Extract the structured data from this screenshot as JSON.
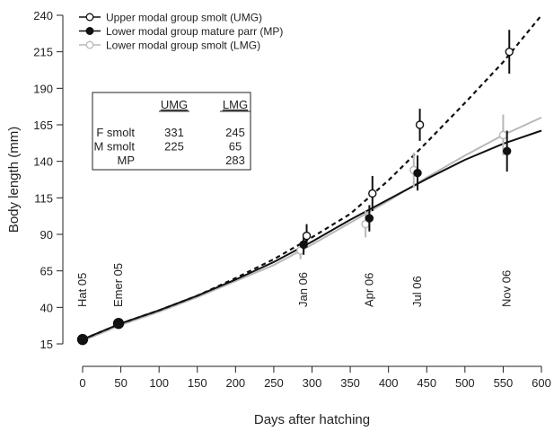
{
  "chart_data": {
    "type": "line",
    "xlabel": "Days after hatching",
    "ylabel": "Body length (mm)",
    "xlim": [
      0,
      600
    ],
    "ylim": [
      15,
      240
    ],
    "xticks": [
      0,
      50,
      100,
      150,
      200,
      250,
      300,
      350,
      400,
      450,
      500,
      550,
      600
    ],
    "yticks": [
      15,
      40,
      65,
      90,
      115,
      140,
      165,
      190,
      215,
      240
    ],
    "grid": false,
    "legend_position": "top-left",
    "colors": {
      "UMG": "#111111",
      "MP": "#111111",
      "LMG": "#b8b8b8",
      "text": "#222222"
    },
    "series": [
      {
        "name": "Upper modal group smolt (UMG)",
        "marker": "open-circle",
        "line": "dashed",
        "curve": {
          "x": [
            0,
            50,
            100,
            150,
            200,
            250,
            300,
            350,
            400,
            450,
            500,
            550,
            600
          ],
          "y": [
            18,
            29,
            38,
            48,
            60,
            73,
            88,
            104,
            127,
            153,
            180,
            208,
            240
          ]
        },
        "points": [
          {
            "x": 293,
            "y": 89,
            "err": 8
          },
          {
            "x": 379,
            "y": 118,
            "err": 12
          },
          {
            "x": 441,
            "y": 165,
            "err": 11
          },
          {
            "x": 558,
            "y": 215,
            "err": 15
          }
        ]
      },
      {
        "name": "Lower modal group mature parr (MP)",
        "marker": "filled-circle",
        "line": "solid",
        "curve": {
          "x": [
            0,
            50,
            100,
            150,
            200,
            250,
            300,
            350,
            400,
            450,
            500,
            550,
            600
          ],
          "y": [
            18,
            29,
            38,
            48,
            59,
            71,
            85,
            100,
            114,
            128,
            141,
            152,
            161
          ]
        },
        "points": [
          {
            "x": 0,
            "y": 18,
            "err": 0
          },
          {
            "x": 47,
            "y": 29,
            "err": 0
          },
          {
            "x": 289,
            "y": 83,
            "err": 7
          },
          {
            "x": 375,
            "y": 101,
            "err": 9
          },
          {
            "x": 438,
            "y": 132,
            "err": 12
          },
          {
            "x": 555,
            "y": 147,
            "err": 14
          }
        ]
      },
      {
        "name": "Lower modal group smolt (LMG)",
        "marker": "open-circle",
        "line": "solid",
        "curve": {
          "x": [
            0,
            50,
            100,
            150,
            200,
            250,
            300,
            350,
            400,
            450,
            500,
            550,
            600
          ],
          "y": [
            17,
            28,
            37,
            47,
            58,
            69,
            83,
            98,
            113,
            129,
            144,
            158,
            170
          ]
        },
        "points": [
          {
            "x": 285,
            "y": 79,
            "err": 6
          },
          {
            "x": 370,
            "y": 97,
            "err": 9
          },
          {
            "x": 433,
            "y": 134,
            "err": 12
          },
          {
            "x": 550,
            "y": 158,
            "err": 14
          }
        ]
      }
    ],
    "annotations": [
      {
        "label": "Hat 05",
        "x": 0
      },
      {
        "label": "Emer 05",
        "x": 47
      },
      {
        "label": "Jan 06",
        "x": 289
      },
      {
        "label": "Apr 06",
        "x": 375
      },
      {
        "label": "Jul 06",
        "x": 438
      },
      {
        "label": "Nov 06",
        "x": 555
      }
    ],
    "table": {
      "columns": [
        "",
        "UMG",
        "LMG"
      ],
      "rows": [
        [
          "F smolt",
          "331",
          "245"
        ],
        [
          "M smolt",
          "225",
          "65"
        ],
        [
          "MP",
          "",
          "283"
        ]
      ]
    }
  }
}
